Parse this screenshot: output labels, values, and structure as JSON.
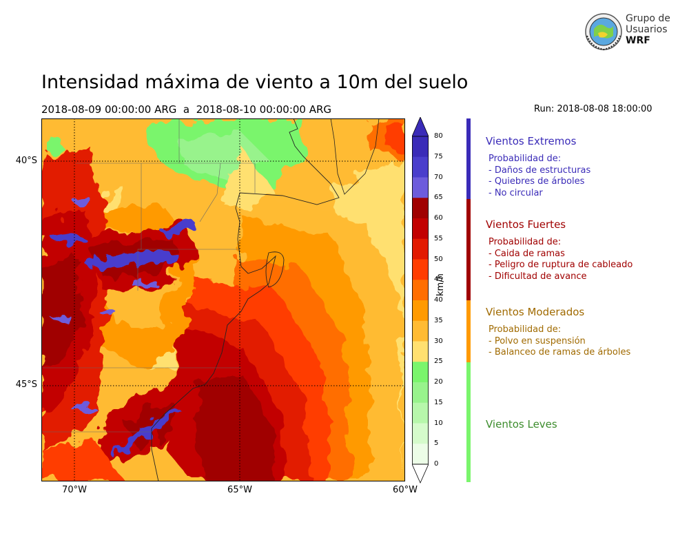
{
  "header": {
    "title": "Intensidad máxima de viento a 10m del suelo",
    "period": "2018-08-09 00:00:00 ARG  a  2018-08-10 00:00:00 ARG",
    "run": "Run: 2018-08-08 18:00:00"
  },
  "logo": {
    "line1": "Grupo de",
    "line2": "Usuarios",
    "line3": "WRF",
    "icon": "globe-seal-icon"
  },
  "map": {
    "lat_labels": [
      "40°S",
      "45°S"
    ],
    "lon_labels": [
      "70°W",
      "65°W",
      "60°W"
    ],
    "extent": {
      "lon": [
        -71,
        -60
      ],
      "lat": [
        -49.2,
        -39.0
      ]
    },
    "gridlines": true
  },
  "colorbar": {
    "unit": "km/h",
    "ticks": [
      "80",
      "75",
      "70",
      "65",
      "60",
      "55",
      "50",
      "45",
      "40",
      "35",
      "30",
      "25",
      "20",
      "15",
      "10",
      "5",
      "0"
    ],
    "colors": [
      "#3a2bb8",
      "#4a3ecc",
      "#6d5cdc",
      "#a00000",
      "#c20000",
      "#e21a00",
      "#ff3d00",
      "#ff6e00",
      "#ff9a00",
      "#ffbb33",
      "#ffe070",
      "#7af56c",
      "#98f38c",
      "#b7f7ab",
      "#d5fbcb",
      "#ecfde7"
    ],
    "color_min": "#ffffff"
  },
  "categories": [
    {
      "name": "Vientos Extremos",
      "color": "#3a2bb8",
      "lines": [
        "Probabilidad de:",
        "- Daños de estructuras",
        "- Quiebres de árboles",
        "- No circular"
      ]
    },
    {
      "name": "Vientos Fuertes",
      "color": "#a00000",
      "lines": [
        "Probabilidad de:",
        "- Caida de ramas",
        "- Peligro de ruptura de cableado",
        "- Dificultad de avance"
      ]
    },
    {
      "name": "Vientos Moderados",
      "color": "#a06a00",
      "bar_color": "#ff9a00",
      "lines": [
        "Probabilidad de:",
        "- Polvo en suspensión",
        "- Balanceo de ramas de árboles"
      ]
    },
    {
      "name": "Vientos Leves",
      "color": "#3c8c2c",
      "bar_color": "#7af56c",
      "lines": []
    }
  ]
}
